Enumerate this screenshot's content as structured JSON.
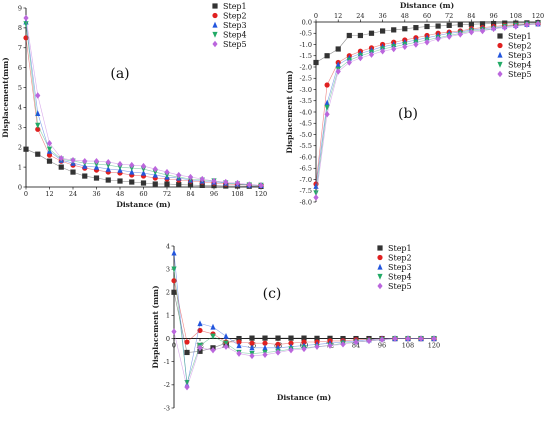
{
  "chart_data": [
    {
      "type": "line",
      "panel_label": "(a)",
      "xlabel": "Distance (m)",
      "ylabel": "Displacement(mm)",
      "xlim": [
        0,
        120
      ],
      "ylim": [
        0,
        9
      ],
      "xticks": [
        0,
        12,
        24,
        36,
        48,
        60,
        72,
        84,
        96,
        108,
        120
      ],
      "yticks": [
        0,
        1,
        2,
        3,
        4,
        5,
        6,
        7,
        8,
        9
      ],
      "x_axis_position": "bottom",
      "legend_position": "top-right",
      "x": [
        0,
        6,
        12,
        18,
        24,
        30,
        36,
        42,
        48,
        54,
        60,
        66,
        72,
        78,
        84,
        90,
        96,
        102,
        108,
        114,
        120
      ],
      "series": [
        {
          "name": "Step1",
          "color": "#333333",
          "marker": "square",
          "values": [
            1.9,
            1.65,
            1.3,
            1.0,
            0.75,
            0.55,
            0.45,
            0.35,
            0.3,
            0.25,
            0.2,
            0.15,
            0.15,
            0.12,
            0.1,
            0.08,
            0.07,
            0.05,
            0.05,
            0.04,
            0.03
          ]
        },
        {
          "name": "Step2",
          "color": "#e02020",
          "marker": "circle",
          "values": [
            7.5,
            2.9,
            1.6,
            1.3,
            1.1,
            0.95,
            0.85,
            0.75,
            0.7,
            0.6,
            0.55,
            0.45,
            0.4,
            0.35,
            0.3,
            0.25,
            0.2,
            0.15,
            0.12,
            0.1,
            0.08
          ]
        },
        {
          "name": "Step3",
          "color": "#2255dd",
          "marker": "triangle-up",
          "values": [
            8.3,
            3.7,
            1.8,
            1.35,
            1.2,
            1.05,
            1.0,
            0.9,
            0.85,
            0.75,
            0.7,
            0.6,
            0.5,
            0.45,
            0.35,
            0.3,
            0.25,
            0.2,
            0.15,
            0.1,
            0.08
          ]
        },
        {
          "name": "Step4",
          "color": "#22aa66",
          "marker": "triangle-down",
          "values": [
            8.2,
            3.1,
            1.9,
            1.4,
            1.3,
            1.2,
            1.15,
            1.1,
            1.0,
            0.95,
            0.9,
            0.75,
            0.6,
            0.5,
            0.4,
            0.35,
            0.3,
            0.2,
            0.15,
            0.1,
            0.08
          ]
        },
        {
          "name": "Step5",
          "color": "#bb66dd",
          "marker": "diamond",
          "values": [
            8.5,
            4.6,
            2.2,
            1.45,
            1.35,
            1.3,
            1.3,
            1.25,
            1.15,
            1.1,
            1.05,
            0.9,
            0.75,
            0.6,
            0.5,
            0.4,
            0.3,
            0.25,
            0.2,
            0.12,
            0.08
          ]
        }
      ]
    },
    {
      "type": "line",
      "panel_label": "(b)",
      "xlabel": "Distance (m)",
      "ylabel": "Displacement (mm)",
      "xlim": [
        0,
        120
      ],
      "ylim": [
        -8,
        0
      ],
      "xticks": [
        0,
        12,
        24,
        36,
        48,
        60,
        72,
        84,
        96,
        108,
        120
      ],
      "yticks": [
        0,
        -0.5,
        -1.0,
        -1.5,
        -2.0,
        -2.5,
        -3.0,
        -3.5,
        -4.0,
        -4.5,
        -5.0,
        -5.5,
        -6.0,
        -6.5,
        -7.0,
        -7.5,
        -8.0
      ],
      "x_axis_position": "top",
      "legend_position": "top-right",
      "x": [
        0,
        6,
        12,
        18,
        24,
        30,
        36,
        42,
        48,
        54,
        60,
        66,
        72,
        78,
        84,
        90,
        96,
        102,
        108,
        114,
        120
      ],
      "series": [
        {
          "name": "Step1",
          "color": "#333333",
          "marker": "square",
          "values": [
            -1.8,
            -1.5,
            -1.2,
            -0.6,
            -0.6,
            -0.5,
            -0.4,
            -0.35,
            -0.3,
            -0.25,
            -0.2,
            -0.18,
            -0.15,
            -0.12,
            -0.1,
            -0.08,
            -0.07,
            -0.05,
            -0.05,
            -0.04,
            -0.03
          ]
        },
        {
          "name": "Step2",
          "color": "#e02020",
          "marker": "circle",
          "values": [
            -7.2,
            -2.8,
            -1.8,
            -1.5,
            -1.3,
            -1.15,
            -1.0,
            -0.9,
            -0.8,
            -0.7,
            -0.6,
            -0.5,
            -0.45,
            -0.4,
            -0.3,
            -0.25,
            -0.2,
            -0.15,
            -0.12,
            -0.1,
            -0.08
          ]
        },
        {
          "name": "Step3",
          "color": "#2255dd",
          "marker": "triangle-up",
          "values": [
            -7.3,
            -3.6,
            -1.9,
            -1.6,
            -1.4,
            -1.25,
            -1.1,
            -1.0,
            -0.9,
            -0.8,
            -0.7,
            -0.6,
            -0.5,
            -0.45,
            -0.35,
            -0.3,
            -0.25,
            -0.2,
            -0.15,
            -0.1,
            -0.08
          ]
        },
        {
          "name": "Step4",
          "color": "#22aa66",
          "marker": "triangle-down",
          "values": [
            -7.6,
            -3.8,
            -2.1,
            -1.7,
            -1.5,
            -1.35,
            -1.2,
            -1.1,
            -1.0,
            -0.9,
            -0.8,
            -0.7,
            -0.6,
            -0.5,
            -0.4,
            -0.35,
            -0.3,
            -0.2,
            -0.15,
            -0.1,
            -0.08
          ]
        },
        {
          "name": "Step5",
          "color": "#bb66dd",
          "marker": "diamond",
          "values": [
            -7.8,
            -4.1,
            -2.2,
            -1.8,
            -1.6,
            -1.45,
            -1.3,
            -1.2,
            -1.1,
            -1.0,
            -0.9,
            -0.75,
            -0.65,
            -0.55,
            -0.45,
            -0.4,
            -0.3,
            -0.25,
            -0.2,
            -0.12,
            -0.08
          ]
        }
      ]
    },
    {
      "type": "line",
      "panel_label": "(c)",
      "xlabel": "Distance (m)",
      "ylabel": "Displacement (mm)",
      "xlim": [
        0,
        120
      ],
      "ylim": [
        -3,
        4
      ],
      "xticks": [
        0,
        12,
        24,
        36,
        48,
        60,
        72,
        84,
        96,
        108,
        120
      ],
      "yticks": [
        4,
        3,
        2,
        1,
        0,
        -1,
        -2,
        -3
      ],
      "x_axis_position": "zero",
      "legend_position": "top-right",
      "x": [
        0,
        6,
        12,
        18,
        24,
        30,
        36,
        42,
        48,
        54,
        60,
        66,
        72,
        78,
        84,
        90,
        96,
        102,
        108,
        114,
        120
      ],
      "series": [
        {
          "name": "Step1",
          "color": "#333333",
          "marker": "square",
          "values": [
            2.0,
            -0.6,
            -0.55,
            -0.4,
            -0.2,
            0.0,
            0.02,
            0.02,
            0.02,
            0.02,
            0.02,
            0.01,
            0.01,
            0.0,
            0.0,
            0.0,
            0.0,
            0.0,
            0.0,
            0.0,
            0.0
          ]
        },
        {
          "name": "Step2",
          "color": "#e02020",
          "marker": "circle",
          "values": [
            2.5,
            -0.15,
            0.35,
            0.2,
            -0.15,
            -0.15,
            -0.2,
            -0.2,
            -0.25,
            -0.2,
            -0.15,
            -0.15,
            -0.1,
            -0.1,
            -0.05,
            -0.05,
            0.0,
            0.0,
            0.0,
            0.0,
            0.0
          ]
        },
        {
          "name": "Step3",
          "color": "#2255dd",
          "marker": "triangle-up",
          "values": [
            3.7,
            -2.0,
            0.65,
            0.5,
            0.1,
            -0.3,
            -0.4,
            -0.4,
            -0.4,
            -0.35,
            -0.3,
            -0.25,
            -0.2,
            -0.15,
            -0.1,
            -0.05,
            0.0,
            0.0,
            0.0,
            0.0,
            0.0
          ]
        },
        {
          "name": "Step4",
          "color": "#22aa66",
          "marker": "triangle-down",
          "values": [
            3.0,
            -1.9,
            -0.3,
            0.1,
            -0.2,
            -0.6,
            -0.65,
            -0.6,
            -0.55,
            -0.45,
            -0.4,
            -0.35,
            -0.3,
            -0.2,
            -0.15,
            -0.1,
            -0.05,
            0.0,
            0.0,
            0.0,
            0.0
          ]
        },
        {
          "name": "Step5",
          "color": "#bb66dd",
          "marker": "diamond",
          "values": [
            0.3,
            -2.1,
            -0.4,
            -0.5,
            -0.35,
            -0.65,
            -0.75,
            -0.7,
            -0.6,
            -0.5,
            -0.45,
            -0.35,
            -0.3,
            -0.25,
            -0.15,
            -0.1,
            -0.05,
            0.0,
            0.0,
            0.0,
            0.0
          ]
        }
      ]
    }
  ]
}
